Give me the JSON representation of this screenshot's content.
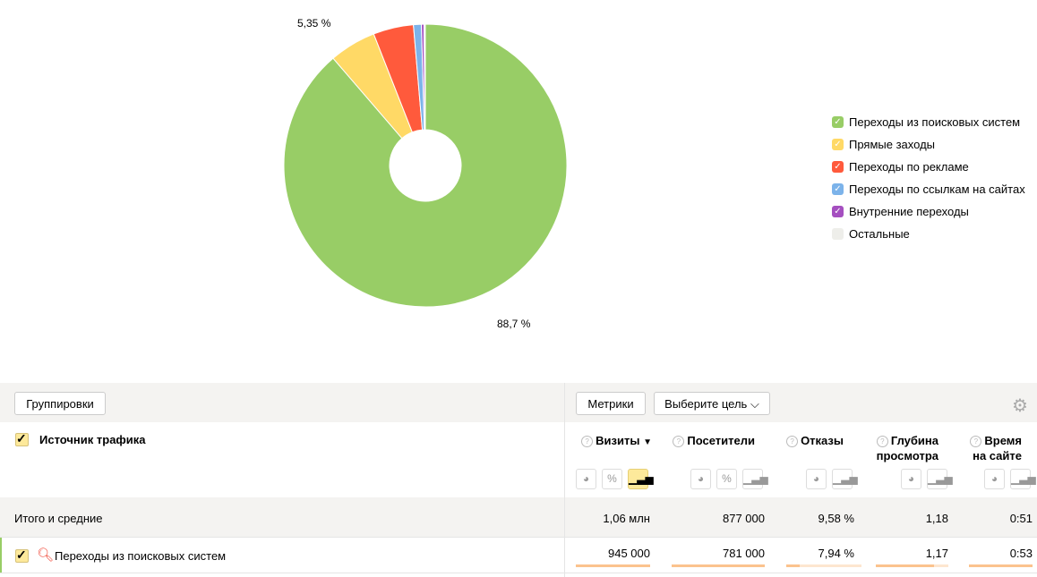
{
  "chart_data": {
    "type": "pie",
    "donut": true,
    "slices": [
      {
        "name": "Переходы из поисковых систем",
        "value": 88.7,
        "color": "#98cd66",
        "label": "88,7 %"
      },
      {
        "name": "Прямые заходы",
        "value": 5.35,
        "color": "#ffd966",
        "label": "5,35 %"
      },
      {
        "name": "Переходы по рекламе",
        "value": 4.6,
        "color": "#ff5a3c"
      },
      {
        "name": "Переходы по ссылкам на сайтах",
        "value": 0.9,
        "color": "#7cb3ea"
      },
      {
        "name": "Внутренние переходы",
        "value": 0.3,
        "color": "#a54fc0"
      },
      {
        "name": "Остальные",
        "value": 0.15,
        "color": "#eeeeea"
      }
    ]
  },
  "toolbar": {
    "groupings": "Группировки",
    "metrics": "Метрики",
    "goal": "Выберите цель",
    "goal_icon": "chevron-down-icon",
    "settings_icon": "gear-icon"
  },
  "table": {
    "dimension": "Источник трафика",
    "columns": [
      {
        "l1": "Визиты",
        "l2": "",
        "sort": "▼"
      },
      {
        "l1": "Посетители",
        "l2": ""
      },
      {
        "l1": "Отказы",
        "l2": ""
      },
      {
        "l1": "Глубина",
        "l2": "просмотра"
      },
      {
        "l1": "Время",
        "l2": "на сайте"
      }
    ],
    "totals": {
      "label": "Итого и средние",
      "values": [
        "1,06 млн",
        "877 000",
        "9,58 %",
        "1,18",
        "0:51"
      ]
    },
    "rows": [
      {
        "label": "Переходы из поисковых систем",
        "values": [
          "945 000",
          "781 000",
          "7,94 %",
          "1,17",
          "0:53"
        ],
        "bar_fractions": [
          1,
          1,
          0.18,
          0.8,
          1
        ],
        "icon": "magnifier-icon"
      }
    ]
  }
}
